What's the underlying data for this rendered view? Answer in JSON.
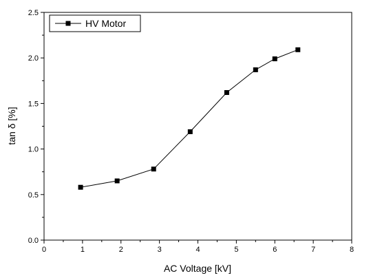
{
  "chart_data": {
    "type": "line",
    "title": "",
    "xlabel": "AC Voltage [kV]",
    "ylabel": "tan δ [%]",
    "xlim": [
      0,
      8
    ],
    "ylim": [
      0,
      2.5
    ],
    "x_ticks": [
      "0",
      "1",
      "2",
      "3",
      "4",
      "5",
      "6",
      "7",
      "8"
    ],
    "y_ticks": [
      "0.0",
      "0.5",
      "1.0",
      "1.5",
      "2.0",
      "2.5"
    ],
    "grid": false,
    "legend_position": "top-left",
    "series": [
      {
        "name": "HV Motor",
        "marker": "square",
        "color": "#000000",
        "x": [
          0.95,
          1.9,
          2.85,
          3.8,
          4.75,
          5.5,
          6.0,
          6.6
        ],
        "y": [
          0.58,
          0.65,
          0.78,
          1.19,
          1.62,
          1.87,
          1.99,
          2.09
        ]
      }
    ]
  }
}
